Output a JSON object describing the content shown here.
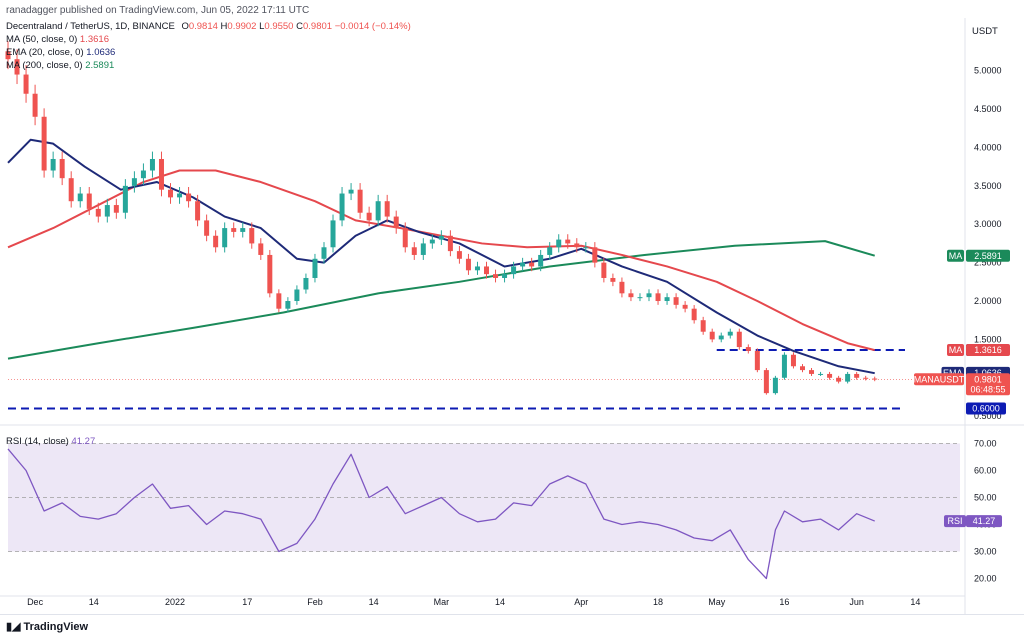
{
  "header": {
    "publisher_text": "ranadagger published on TradingView.com, Jun 05, 2022 17:11 UTC"
  },
  "footer": {
    "logo_text": "TradingView"
  },
  "colors": {
    "up": "#26a69a",
    "down": "#ef5350",
    "ma50": "#e5484d",
    "ema20": "#1e2a78",
    "ma200": "#1b8a5a",
    "rsi": "#7e57c2",
    "rsi_band": "#ede7f6",
    "level": "#0d1bb3",
    "price": "#ef5350"
  },
  "chart_data": [
    {
      "type": "line",
      "title": "Decentraland / TetherUS, 1D, BINANCE",
      "ohlc": {
        "o_label": "O",
        "o": "0.9814",
        "h_label": "H",
        "h": "0.9902",
        "l_label": "L",
        "l": "0.9550",
        "c_label": "C",
        "c": "0.9801",
        "change": "−0.0014 (−0.14%)"
      },
      "indicators": [
        {
          "label": "MA (50, close, 0)",
          "value": "1.3616"
        },
        {
          "label": "EMA (20, close, 0)",
          "value": "1.0636"
        },
        {
          "label": "MA (200, close, 0)",
          "value": "2.5891"
        }
      ],
      "y_unit": "USDT",
      "y_ticks": [
        "5.0000",
        "4.5000",
        "4.0000",
        "3.5000",
        "3.0000",
        "2.5000",
        "2.0000",
        "1.5000",
        "0.5000"
      ],
      "x_ticks": [
        "Dec",
        "14",
        "2022",
        "17",
        "Feb",
        "14",
        "Mar",
        "14",
        "Apr",
        "18",
        "May",
        "16",
        "Jun",
        "14"
      ],
      "ylim": [
        0.45,
        5.4
      ],
      "grid": false,
      "price_series": [
        {
          "t": "2021-11-25",
          "c": 5.15
        },
        {
          "t": "2021-11-27",
          "c": 4.95
        },
        {
          "t": "2021-11-29",
          "c": 4.7
        },
        {
          "t": "2021-12-01",
          "c": 4.4
        },
        {
          "t": "2021-12-03",
          "c": 3.7
        },
        {
          "t": "2021-12-05",
          "c": 3.85
        },
        {
          "t": "2021-12-07",
          "c": 3.6
        },
        {
          "t": "2021-12-09",
          "c": 3.3
        },
        {
          "t": "2021-12-11",
          "c": 3.4
        },
        {
          "t": "2021-12-13",
          "c": 3.2
        },
        {
          "t": "2021-12-15",
          "c": 3.1
        },
        {
          "t": "2021-12-17",
          "c": 3.25
        },
        {
          "t": "2021-12-19",
          "c": 3.15
        },
        {
          "t": "2021-12-21",
          "c": 3.5
        },
        {
          "t": "2021-12-23",
          "c": 3.6
        },
        {
          "t": "2021-12-25",
          "c": 3.7
        },
        {
          "t": "2021-12-27",
          "c": 3.85
        },
        {
          "t": "2021-12-29",
          "c": 3.45
        },
        {
          "t": "2021-12-31",
          "c": 3.35
        },
        {
          "t": "2022-01-02",
          "c": 3.4
        },
        {
          "t": "2022-01-04",
          "c": 3.3
        },
        {
          "t": "2022-01-06",
          "c": 3.05
        },
        {
          "t": "2022-01-08",
          "c": 2.85
        },
        {
          "t": "2022-01-10",
          "c": 2.7
        },
        {
          "t": "2022-01-12",
          "c": 2.95
        },
        {
          "t": "2022-01-14",
          "c": 2.9
        },
        {
          "t": "2022-01-16",
          "c": 2.95
        },
        {
          "t": "2022-01-18",
          "c": 2.75
        },
        {
          "t": "2022-01-20",
          "c": 2.6
        },
        {
          "t": "2022-01-22",
          "c": 2.1
        },
        {
          "t": "2022-01-24",
          "c": 1.9
        },
        {
          "t": "2022-01-26",
          "c": 2.0
        },
        {
          "t": "2022-01-28",
          "c": 2.15
        },
        {
          "t": "2022-01-30",
          "c": 2.3
        },
        {
          "t": "2022-02-01",
          "c": 2.55
        },
        {
          "t": "2022-02-03",
          "c": 2.7
        },
        {
          "t": "2022-02-05",
          "c": 3.05
        },
        {
          "t": "2022-02-07",
          "c": 3.4
        },
        {
          "t": "2022-02-09",
          "c": 3.45
        },
        {
          "t": "2022-02-11",
          "c": 3.15
        },
        {
          "t": "2022-02-13",
          "c": 3.05
        },
        {
          "t": "2022-02-15",
          "c": 3.3
        },
        {
          "t": "2022-02-17",
          "c": 3.1
        },
        {
          "t": "2022-02-19",
          "c": 2.95
        },
        {
          "t": "2022-02-21",
          "c": 2.7
        },
        {
          "t": "2022-02-23",
          "c": 2.6
        },
        {
          "t": "2022-02-25",
          "c": 2.75
        },
        {
          "t": "2022-02-27",
          "c": 2.8
        },
        {
          "t": "2022-03-01",
          "c": 2.85
        },
        {
          "t": "2022-03-03",
          "c": 2.65
        },
        {
          "t": "2022-03-05",
          "c": 2.55
        },
        {
          "t": "2022-03-07",
          "c": 2.4
        },
        {
          "t": "2022-03-09",
          "c": 2.45
        },
        {
          "t": "2022-03-11",
          "c": 2.35
        },
        {
          "t": "2022-03-13",
          "c": 2.3
        },
        {
          "t": "2022-03-15",
          "c": 2.35
        },
        {
          "t": "2022-03-17",
          "c": 2.45
        },
        {
          "t": "2022-03-19",
          "c": 2.5
        },
        {
          "t": "2022-03-21",
          "c": 2.45
        },
        {
          "t": "2022-03-23",
          "c": 2.6
        },
        {
          "t": "2022-03-25",
          "c": 2.7
        },
        {
          "t": "2022-03-27",
          "c": 2.8
        },
        {
          "t": "2022-03-29",
          "c": 2.75
        },
        {
          "t": "2022-03-31",
          "c": 2.7
        },
        {
          "t": "2022-04-02",
          "c": 2.7
        },
        {
          "t": "2022-04-04",
          "c": 2.5
        },
        {
          "t": "2022-04-06",
          "c": 2.3
        },
        {
          "t": "2022-04-08",
          "c": 2.25
        },
        {
          "t": "2022-04-10",
          "c": 2.1
        },
        {
          "t": "2022-04-12",
          "c": 2.05
        },
        {
          "t": "2022-04-14",
          "c": 2.05
        },
        {
          "t": "2022-04-16",
          "c": 2.1
        },
        {
          "t": "2022-04-18",
          "c": 2.0
        },
        {
          "t": "2022-04-20",
          "c": 2.05
        },
        {
          "t": "2022-04-22",
          "c": 1.95
        },
        {
          "t": "2022-04-24",
          "c": 1.9
        },
        {
          "t": "2022-04-26",
          "c": 1.75
        },
        {
          "t": "2022-04-28",
          "c": 1.6
        },
        {
          "t": "2022-04-30",
          "c": 1.5
        },
        {
          "t": "2022-05-02",
          "c": 1.55
        },
        {
          "t": "2022-05-04",
          "c": 1.6
        },
        {
          "t": "2022-05-06",
          "c": 1.4
        },
        {
          "t": "2022-05-08",
          "c": 1.35
        },
        {
          "t": "2022-05-10",
          "c": 1.1
        },
        {
          "t": "2022-05-12",
          "c": 0.8
        },
        {
          "t": "2022-05-14",
          "c": 1.0
        },
        {
          "t": "2022-05-16",
          "c": 1.3
        },
        {
          "t": "2022-05-18",
          "c": 1.15
        },
        {
          "t": "2022-05-20",
          "c": 1.1
        },
        {
          "t": "2022-05-22",
          "c": 1.05
        },
        {
          "t": "2022-05-24",
          "c": 1.05
        },
        {
          "t": "2022-05-26",
          "c": 1.0
        },
        {
          "t": "2022-05-28",
          "c": 0.95
        },
        {
          "t": "2022-05-30",
          "c": 1.05
        },
        {
          "t": "2022-06-01",
          "c": 1.0
        },
        {
          "t": "2022-06-03",
          "c": 0.99
        },
        {
          "t": "2022-06-05",
          "c": 0.98
        }
      ],
      "ma50": [
        {
          "t": "2021-11-25",
          "v": 2.7
        },
        {
          "t": "2021-12-05",
          "v": 2.95
        },
        {
          "t": "2021-12-15",
          "v": 3.25
        },
        {
          "t": "2021-12-25",
          "v": 3.55
        },
        {
          "t": "2022-01-02",
          "v": 3.7
        },
        {
          "t": "2022-01-10",
          "v": 3.7
        },
        {
          "t": "2022-01-20",
          "v": 3.55
        },
        {
          "t": "2022-02-01",
          "v": 3.3
        },
        {
          "t": "2022-02-10",
          "v": 3.05
        },
        {
          "t": "2022-02-20",
          "v": 2.95
        },
        {
          "t": "2022-03-01",
          "v": 2.85
        },
        {
          "t": "2022-03-10",
          "v": 2.75
        },
        {
          "t": "2022-03-20",
          "v": 2.7
        },
        {
          "t": "2022-04-01",
          "v": 2.72
        },
        {
          "t": "2022-04-10",
          "v": 2.6
        },
        {
          "t": "2022-04-20",
          "v": 2.45
        },
        {
          "t": "2022-05-01",
          "v": 2.25
        },
        {
          "t": "2022-05-10",
          "v": 2.0
        },
        {
          "t": "2022-05-20",
          "v": 1.7
        },
        {
          "t": "2022-05-30",
          "v": 1.45
        },
        {
          "t": "2022-06-05",
          "v": 1.36
        }
      ],
      "ema20": [
        {
          "t": "2021-11-25",
          "v": 3.8
        },
        {
          "t": "2021-11-30",
          "v": 4.1
        },
        {
          "t": "2021-12-05",
          "v": 4.05
        },
        {
          "t": "2021-12-12",
          "v": 3.75
        },
        {
          "t": "2021-12-20",
          "v": 3.45
        },
        {
          "t": "2021-12-28",
          "v": 3.55
        },
        {
          "t": "2022-01-05",
          "v": 3.35
        },
        {
          "t": "2022-01-12",
          "v": 3.1
        },
        {
          "t": "2022-01-20",
          "v": 2.95
        },
        {
          "t": "2022-01-28",
          "v": 2.55
        },
        {
          "t": "2022-02-03",
          "v": 2.5
        },
        {
          "t": "2022-02-10",
          "v": 2.85
        },
        {
          "t": "2022-02-17",
          "v": 3.05
        },
        {
          "t": "2022-02-24",
          "v": 2.9
        },
        {
          "t": "2022-03-05",
          "v": 2.75
        },
        {
          "t": "2022-03-15",
          "v": 2.45
        },
        {
          "t": "2022-03-25",
          "v": 2.55
        },
        {
          "t": "2022-04-01",
          "v": 2.68
        },
        {
          "t": "2022-04-10",
          "v": 2.45
        },
        {
          "t": "2022-04-20",
          "v": 2.25
        },
        {
          "t": "2022-05-01",
          "v": 1.85
        },
        {
          "t": "2022-05-10",
          "v": 1.55
        },
        {
          "t": "2022-05-18",
          "v": 1.35
        },
        {
          "t": "2022-05-28",
          "v": 1.15
        },
        {
          "t": "2022-06-05",
          "v": 1.06
        }
      ],
      "ma200": [
        {
          "t": "2021-11-25",
          "v": 1.25
        },
        {
          "t": "2021-12-15",
          "v": 1.45
        },
        {
          "t": "2022-01-05",
          "v": 1.65
        },
        {
          "t": "2022-01-25",
          "v": 1.85
        },
        {
          "t": "2022-02-15",
          "v": 2.1
        },
        {
          "t": "2022-03-05",
          "v": 2.25
        },
        {
          "t": "2022-03-25",
          "v": 2.45
        },
        {
          "t": "2022-04-15",
          "v": 2.6
        },
        {
          "t": "2022-05-05",
          "v": 2.72
        },
        {
          "t": "2022-05-25",
          "v": 2.78
        },
        {
          "t": "2022-06-05",
          "v": 2.59
        }
      ],
      "levels": [
        {
          "value": 1.3622,
          "label": "1.3622",
          "from": "2022-05-01",
          "to": "2022-06-05"
        },
        {
          "value": 0.6,
          "label": "0.6000",
          "from": "2021-11-25",
          "to": "2022-06-05"
        }
      ],
      "price_tags": [
        {
          "name": "MA",
          "value": "2.5891",
          "price": 2.5891,
          "color": "#1b8a5a"
        },
        {
          "name": "MA",
          "value": "1.3616",
          "price": 1.3616,
          "color": "#e5484d"
        },
        {
          "name": "EMA",
          "value": "1.0636",
          "price": 1.0636,
          "color": "#1e2a78"
        },
        {
          "name": "MANAUSDT",
          "value": "0.9801",
          "price": 0.9801,
          "color": "#ef5350",
          "countdown": "06:48:55"
        }
      ],
      "legend_position": "top-left"
    },
    {
      "type": "line",
      "title": "RSI (14, close)",
      "value": "41.27",
      "y_ticks": [
        "70.00",
        "60.00",
        "50.00",
        "40.00",
        "30.00",
        "20.00"
      ],
      "ylim": [
        15,
        75
      ],
      "band": [
        30,
        70
      ],
      "tag": {
        "name": "RSI",
        "value": "41.27"
      },
      "series": [
        {
          "t": "2021-11-25",
          "v": 68
        },
        {
          "t": "2021-11-29",
          "v": 60
        },
        {
          "t": "2021-12-03",
          "v": 45
        },
        {
          "t": "2021-12-07",
          "v": 48
        },
        {
          "t": "2021-12-11",
          "v": 43
        },
        {
          "t": "2021-12-15",
          "v": 42
        },
        {
          "t": "2021-12-19",
          "v": 44
        },
        {
          "t": "2021-12-23",
          "v": 50
        },
        {
          "t": "2021-12-27",
          "v": 55
        },
        {
          "t": "2021-12-31",
          "v": 46
        },
        {
          "t": "2022-01-04",
          "v": 47
        },
        {
          "t": "2022-01-08",
          "v": 40
        },
        {
          "t": "2022-01-12",
          "v": 45
        },
        {
          "t": "2022-01-16",
          "v": 44
        },
        {
          "t": "2022-01-20",
          "v": 42
        },
        {
          "t": "2022-01-24",
          "v": 30
        },
        {
          "t": "2022-01-28",
          "v": 33
        },
        {
          "t": "2022-02-01",
          "v": 42
        },
        {
          "t": "2022-02-05",
          "v": 55
        },
        {
          "t": "2022-02-09",
          "v": 66
        },
        {
          "t": "2022-02-13",
          "v": 50
        },
        {
          "t": "2022-02-17",
          "v": 54
        },
        {
          "t": "2022-02-21",
          "v": 44
        },
        {
          "t": "2022-02-25",
          "v": 47
        },
        {
          "t": "2022-03-01",
          "v": 50
        },
        {
          "t": "2022-03-05",
          "v": 44
        },
        {
          "t": "2022-03-09",
          "v": 41
        },
        {
          "t": "2022-03-13",
          "v": 42
        },
        {
          "t": "2022-03-17",
          "v": 48
        },
        {
          "t": "2022-03-21",
          "v": 47
        },
        {
          "t": "2022-03-25",
          "v": 55
        },
        {
          "t": "2022-03-29",
          "v": 58
        },
        {
          "t": "2022-04-02",
          "v": 55
        },
        {
          "t": "2022-04-06",
          "v": 42
        },
        {
          "t": "2022-04-10",
          "v": 40
        },
        {
          "t": "2022-04-14",
          "v": 41
        },
        {
          "t": "2022-04-18",
          "v": 40
        },
        {
          "t": "2022-04-22",
          "v": 38
        },
        {
          "t": "2022-04-26",
          "v": 35
        },
        {
          "t": "2022-04-30",
          "v": 34
        },
        {
          "t": "2022-05-04",
          "v": 38
        },
        {
          "t": "2022-05-08",
          "v": 27
        },
        {
          "t": "2022-05-12",
          "v": 20
        },
        {
          "t": "2022-05-14",
          "v": 38
        },
        {
          "t": "2022-05-16",
          "v": 45
        },
        {
          "t": "2022-05-20",
          "v": 41
        },
        {
          "t": "2022-05-24",
          "v": 42
        },
        {
          "t": "2022-05-28",
          "v": 38
        },
        {
          "t": "2022-06-01",
          "v": 44
        },
        {
          "t": "2022-06-05",
          "v": 41.27
        }
      ]
    }
  ]
}
